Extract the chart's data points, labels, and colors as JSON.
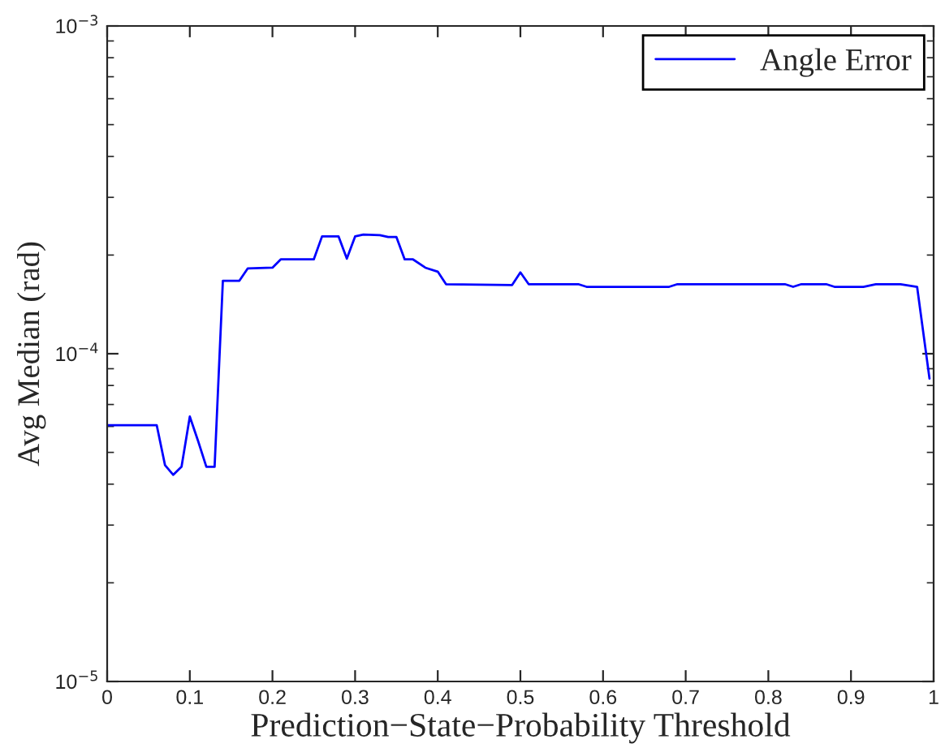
{
  "chart_data": {
    "type": "line",
    "xlabel": "Prediction−State−Probability Threshold",
    "ylabel": "Avg Median (rad)",
    "log": "y",
    "xlim": [
      0,
      1
    ],
    "ylim": [
      1e-05,
      0.001
    ],
    "xticks": [
      0,
      0.1,
      0.2,
      0.3,
      0.4,
      0.5,
      0.6,
      0.7,
      0.8,
      0.9,
      1
    ],
    "yticks": [
      {
        "value": 1e-05,
        "label": "10$^{−5}$"
      },
      {
        "value": 0.0001,
        "label": "10$^{−4}$"
      },
      {
        "value": 0.001,
        "label": "10$^{−3}$"
      }
    ],
    "grid": false,
    "legend": "top right",
    "series": [
      {
        "name": "Angle Error",
        "color": "#0000ff",
        "x": [
          0,
          0.06,
          0.07,
          0.08,
          0.09,
          0.1,
          0.11,
          0.12,
          0.13,
          0.14,
          0.16,
          0.17,
          0.2,
          0.21,
          0.25,
          0.26,
          0.28,
          0.29,
          0.3,
          0.31,
          0.33,
          0.34,
          0.35,
          0.36,
          0.37,
          0.385,
          0.4,
          0.41,
          0.49,
          0.5,
          0.51,
          0.57,
          0.58,
          0.68,
          0.69,
          0.82,
          0.83,
          0.84,
          0.87,
          0.88,
          0.915,
          0.93,
          0.96,
          0.98,
          0.995
        ],
        "values": [
          6.05e-05,
          6.05e-05,
          4.57e-05,
          4.27e-05,
          4.52e-05,
          6.43e-05,
          5.42e-05,
          4.52e-05,
          4.52e-05,
          0.000167,
          0.000167,
          0.000182,
          0.000183,
          0.000194,
          0.000194,
          0.000228,
          0.000228,
          0.000195,
          0.000228,
          0.000231,
          0.00023,
          0.000227,
          0.000227,
          0.000194,
          0.000194,
          0.000183,
          0.000178,
          0.000163,
          0.000162,
          0.000177,
          0.000163,
          0.000163,
          0.00016,
          0.00016,
          0.000163,
          0.000163,
          0.00016,
          0.000163,
          0.000163,
          0.00016,
          0.00016,
          0.000163,
          0.000163,
          0.00016,
          8.4e-05
        ]
      }
    ]
  }
}
